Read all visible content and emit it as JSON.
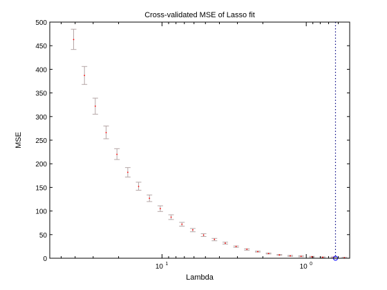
{
  "chart_data": {
    "type": "scatter",
    "title": "Cross-validated MSE of Lasso fit",
    "xlabel": "Lambda",
    "ylabel": "MSE",
    "x_scale": "log",
    "x_reversed": true,
    "xlim": [
      60,
      0.5
    ],
    "ylim": [
      0,
      500
    ],
    "x_ticks": [
      {
        "value": 10,
        "label": "10",
        "sup": "1"
      },
      {
        "value": 1,
        "label": "10",
        "sup": "0"
      }
    ],
    "y_ticks": [
      0,
      50,
      100,
      150,
      200,
      250,
      300,
      350,
      400,
      450,
      500
    ],
    "grid": false,
    "legend": "none",
    "colors": {
      "errorbar": "#b4a5a5",
      "point": "#ff0000",
      "min_marker": "#0000ff",
      "reference_line": "#000080",
      "axes": "#000000"
    },
    "series": [
      {
        "lambda": [
          40.99,
          34.48,
          29.01,
          24.4,
          20.53,
          17.27,
          14.53,
          12.22,
          10.28,
          8.648,
          7.275,
          6.12,
          5.149,
          4.331,
          3.644,
          3.065,
          2.579,
          2.169,
          1.825,
          1.535,
          1.291,
          1.086,
          0.914,
          0.769,
          0.647,
          0.544
        ],
        "mse": [
          463,
          387,
          322,
          266,
          220,
          182,
          152,
          127,
          105,
          87,
          72,
          60,
          49,
          40,
          32,
          25,
          19,
          14,
          10,
          7,
          5,
          4,
          3,
          2,
          2,
          1
        ],
        "err_lower": [
          442,
          368,
          305,
          253,
          209,
          172,
          144,
          120,
          99,
          82,
          68,
          56,
          46,
          37,
          30,
          23,
          17,
          13,
          9,
          6,
          4,
          3,
          2,
          1,
          1,
          0
        ],
        "err_upper": [
          485,
          406,
          339,
          280,
          232,
          192,
          161,
          134,
          111,
          92,
          76,
          63,
          52,
          42,
          34,
          26,
          20,
          15,
          11,
          8,
          6,
          5,
          4,
          3,
          3,
          2
        ]
      }
    ],
    "min_point": {
      "lambda": 0.627,
      "mse": 0
    },
    "reference_line_lambda": 0.627
  }
}
